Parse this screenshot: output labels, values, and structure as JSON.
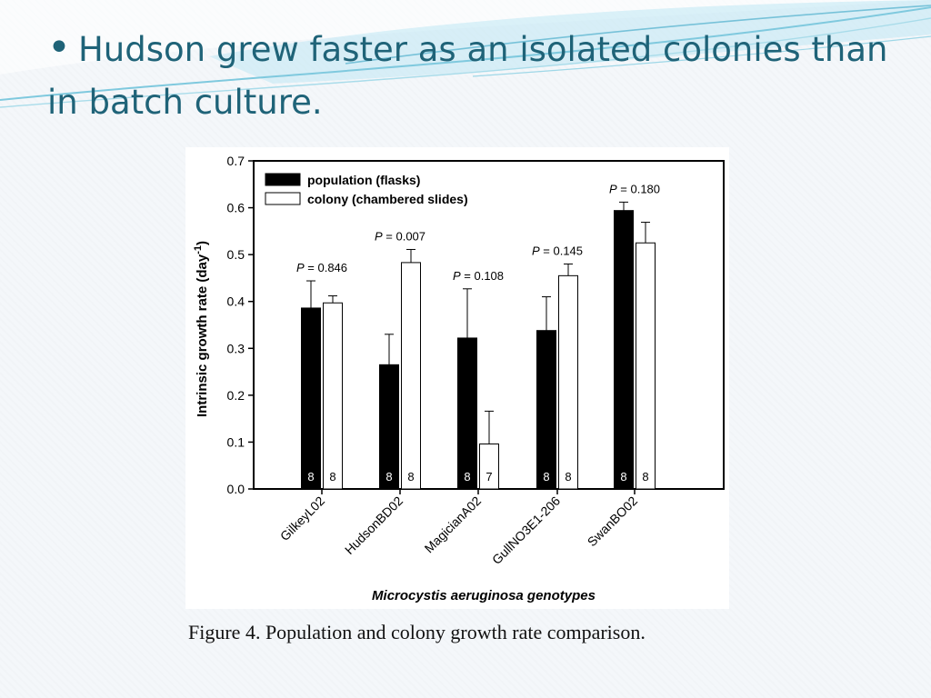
{
  "slide": {
    "bullet": "•",
    "title": "Hudson grew faster as an isolated colonies than in batch culture.",
    "caption": "Figure 4. Population and colony growth rate comparison."
  },
  "colors": {
    "title": "#1f6378",
    "accent": "#8fd3e8",
    "population": "#000000",
    "colony": "#ffffff"
  },
  "chart_data": {
    "type": "bar",
    "title": "",
    "xlabel": "Microcystis aeruginosa genotypes",
    "ylabel": "Intrinsic growth rate (day",
    "ylabel_sup": "-1",
    "ylabel_close": ")",
    "ylim": [
      0,
      0.7
    ],
    "yticks": [
      "0.0",
      "0.1",
      "0.2",
      "0.3",
      "0.4",
      "0.5",
      "0.6",
      "0.7"
    ],
    "legend_position": "top-left",
    "grid": false,
    "categories": [
      "GilkeyL02",
      "HudsonBD02",
      "MagicianA02",
      "GullNO3E1-206",
      "SwanBO02"
    ],
    "series": [
      {
        "name": "population (flasks)",
        "color": "#000000",
        "values": [
          0.386,
          0.265,
          0.322,
          0.338,
          0.594
        ],
        "errors": [
          0.058,
          0.065,
          0.105,
          0.072,
          0.018
        ],
        "n": [
          "8",
          "8",
          "8",
          "8",
          "8"
        ]
      },
      {
        "name": "colony (chambered slides)",
        "color": "#ffffff",
        "values": [
          0.397,
          0.483,
          0.096,
          0.455,
          0.525
        ],
        "errors": [
          0.015,
          0.028,
          0.07,
          0.025,
          0.044
        ],
        "n": [
          "8",
          "8",
          "7",
          "8",
          "8"
        ]
      }
    ],
    "p_values": [
      "= 0.846",
      "= 0.007",
      "= 0.108",
      "= 0.145",
      "= 0.180"
    ],
    "p_letter": "P"
  }
}
